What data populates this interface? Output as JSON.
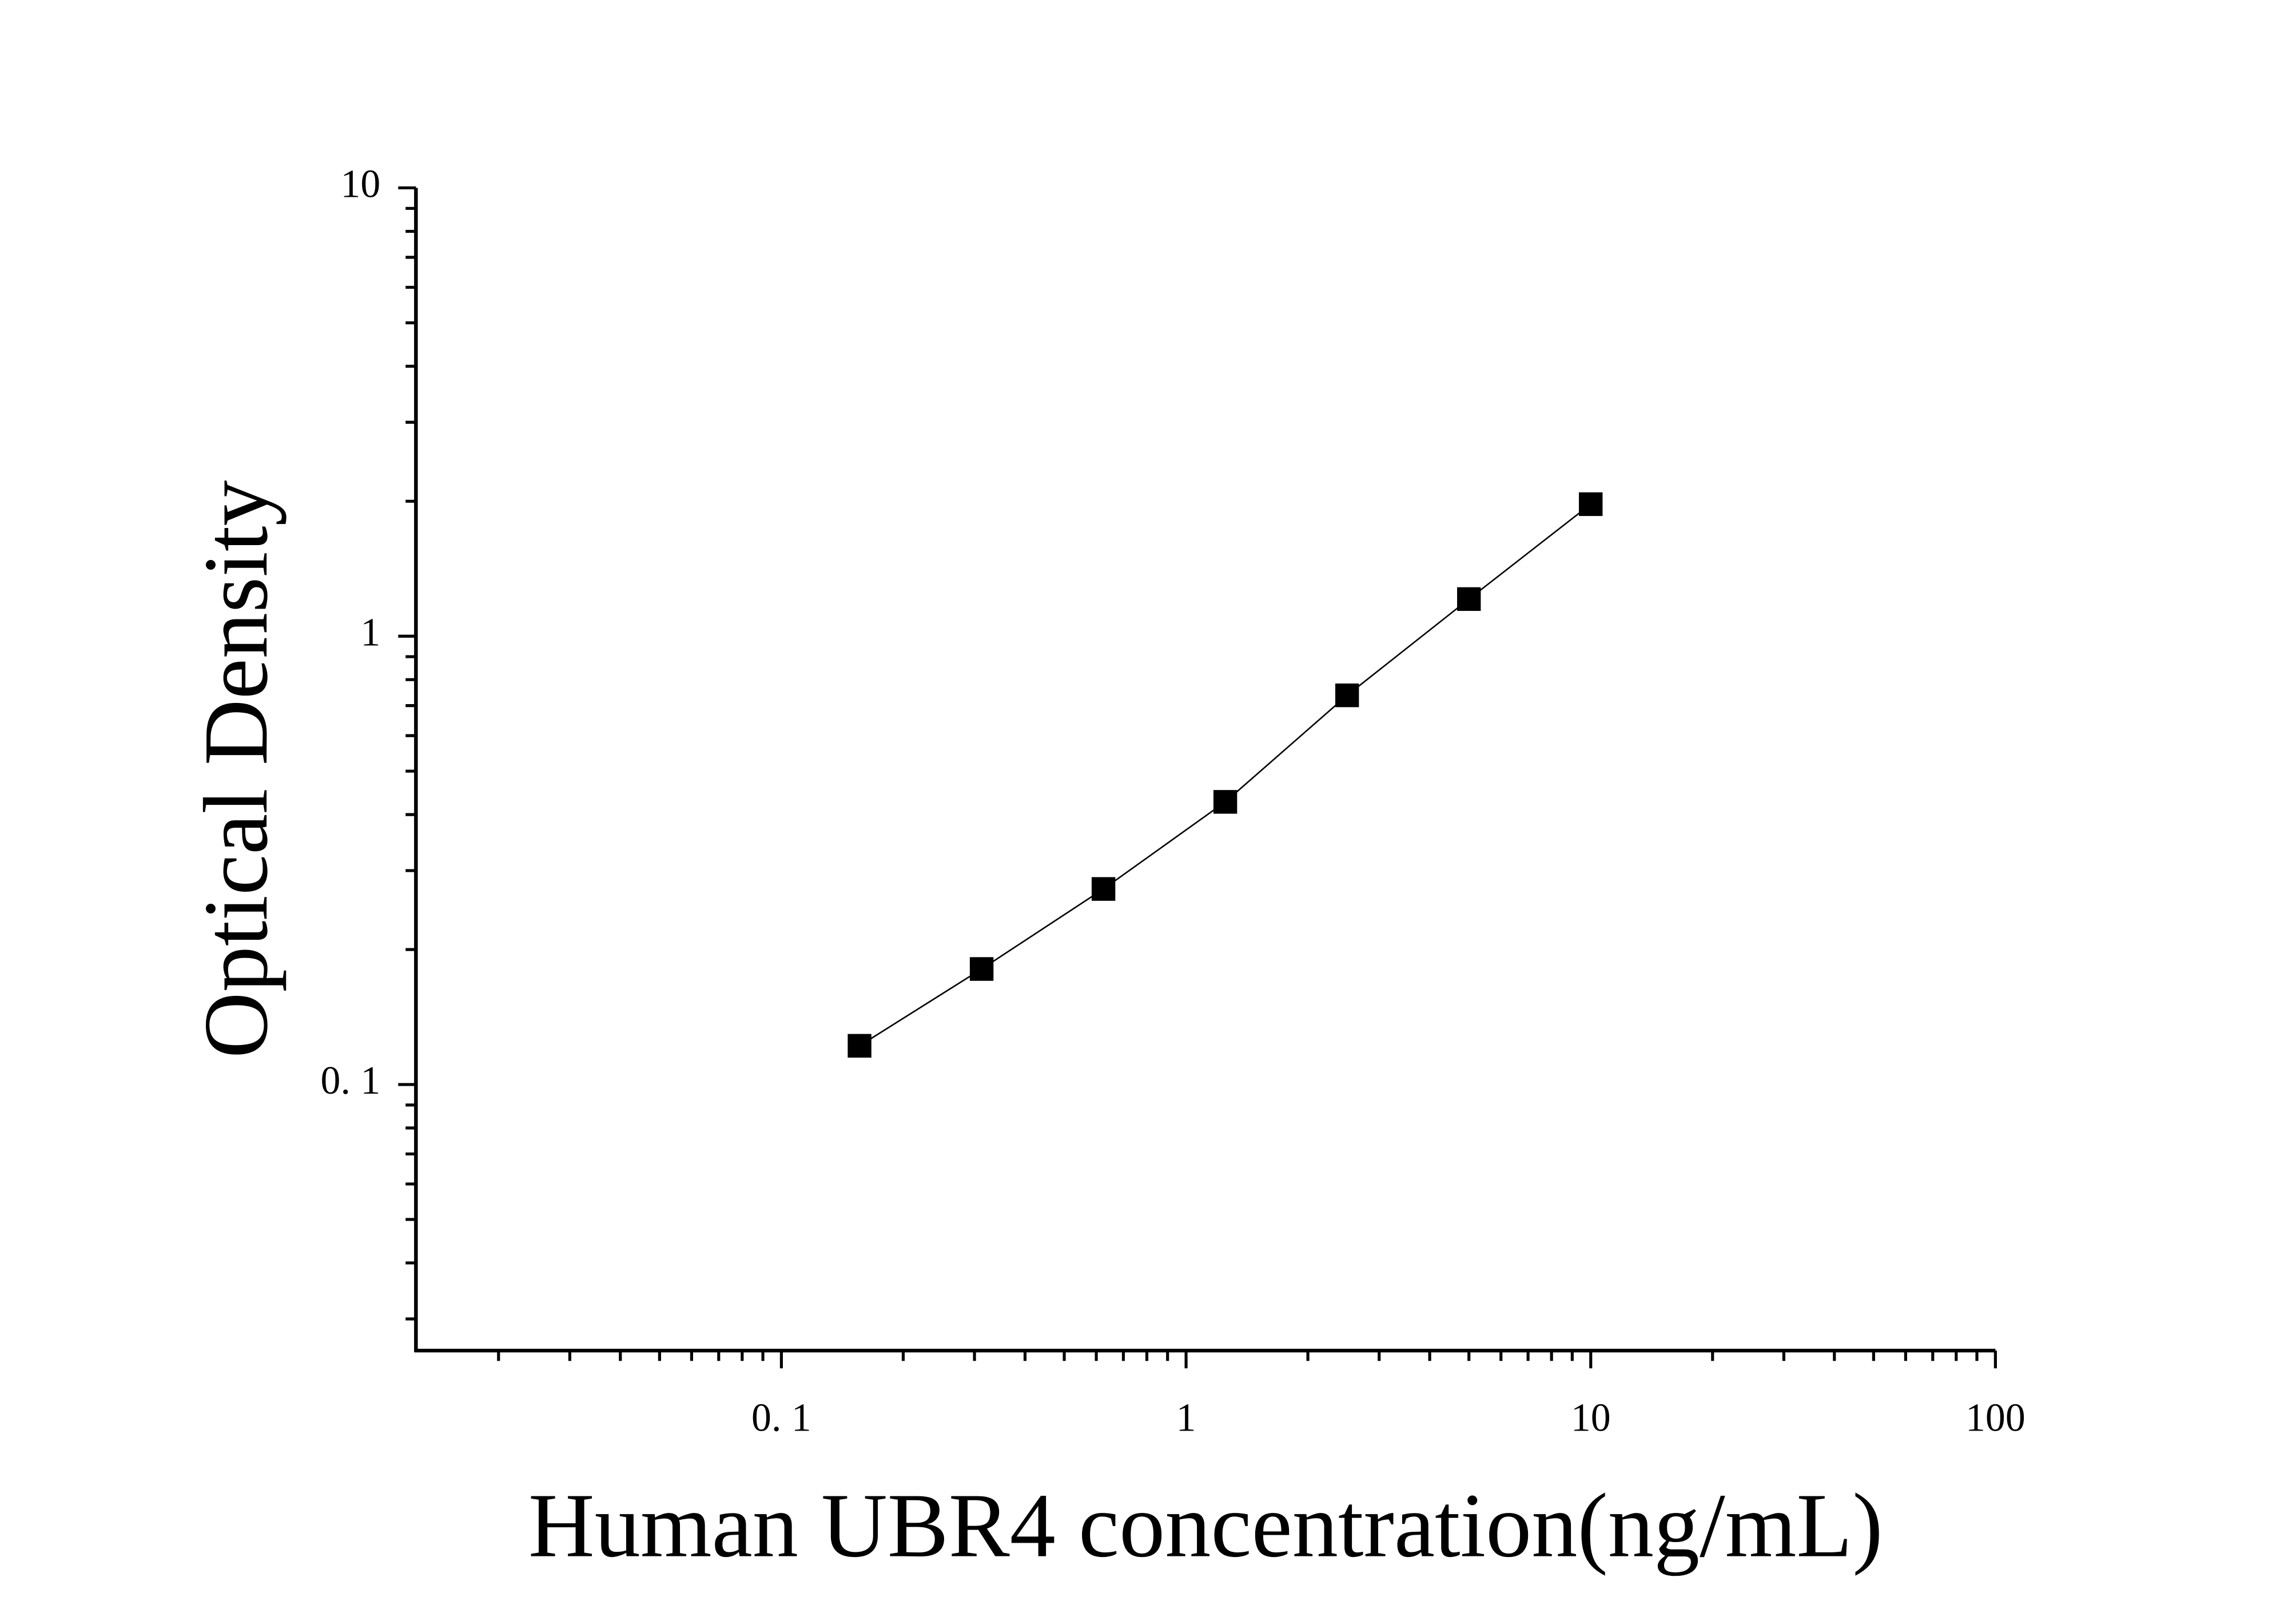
{
  "chart_data": {
    "type": "line",
    "xlabel": "Human UBR4 concentration(ng/mL)",
    "ylabel": "Optical Density",
    "x": [
      0.156,
      0.3125,
      0.625,
      1.25,
      2.5,
      5,
      10
    ],
    "series": [
      {
        "color": "#000000",
        "values": [
          0.122,
          0.181,
          0.273,
          0.427,
          0.738,
          1.21,
          1.97
        ]
      }
    ],
    "xscale": "log",
    "yscale": "log",
    "xlim": [
      0.0125,
      100
    ],
    "ylim": [
      0.0255,
      10
    ],
    "xticks": [
      {
        "value": 0.1,
        "label": "0. 1"
      },
      1,
      10,
      100
    ],
    "yticks": [
      {
        "value": 0.1,
        "label": "0. 1"
      },
      1,
      10
    ],
    "xminorticks": [
      0.02,
      0.03,
      0.04,
      0.05,
      0.06,
      0.07,
      0.08,
      0.09,
      0.2,
      0.3,
      0.4,
      0.5,
      0.6,
      0.7,
      0.8,
      0.9,
      2,
      3,
      4,
      5,
      6,
      7,
      8,
      9,
      20,
      30,
      40,
      50,
      60,
      70,
      80,
      90
    ],
    "yminorticks": [
      0.03,
      0.04,
      0.05,
      0.06,
      0.07,
      0.08,
      0.09,
      0.2,
      0.3,
      0.4,
      0.5,
      0.6,
      0.7,
      0.8,
      0.9,
      2,
      3,
      4,
      5,
      6,
      7,
      8,
      9
    ]
  }
}
